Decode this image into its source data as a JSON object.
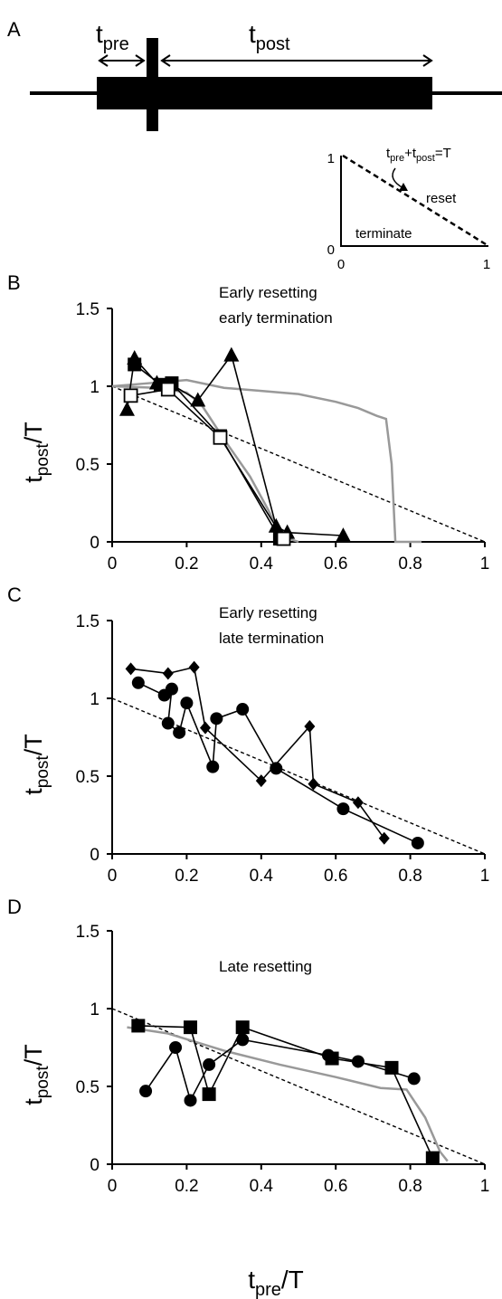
{
  "panels": {
    "A": {
      "letter": "A",
      "schematic": {
        "pre_label": "t",
        "pre_sub": "pre",
        "post_label": "t",
        "post_sub": "post"
      },
      "inset": {
        "equation": {
          "a": "t",
          "a_sub": "pre",
          "plus": "+t",
          "b_sub": "post",
          "rest": "=T"
        },
        "reset_label": "reset",
        "terminate_label": "terminate",
        "x_ticks": [
          "0",
          "1"
        ],
        "y_ticks": [
          "0",
          "1"
        ]
      }
    },
    "B": {
      "letter": "B",
      "annotation": [
        "Early resetting",
        "early termination"
      ],
      "ylabel": "t",
      "ylabel_sub": "post",
      "ylabel_tail": "/T"
    },
    "C": {
      "letter": "C",
      "annotation": [
        "Early resetting",
        "late termination"
      ],
      "ylabel": "t",
      "ylabel_sub": "post",
      "ylabel_tail": "/T"
    },
    "D": {
      "letter": "D",
      "annotation": [
        "Late resetting"
      ],
      "ylabel": "t",
      "ylabel_sub": "post",
      "ylabel_tail": "/T"
    }
  },
  "xlabel": {
    "main": "t",
    "sub": "pre",
    "tail": "/T"
  },
  "colors": {
    "black": "#000000",
    "gray": "#999999"
  },
  "chart_data": [
    {
      "type": "line",
      "panel": "B",
      "xlim": [
        0,
        1
      ],
      "ylim": [
        0,
        1.5
      ],
      "x_ticks": [
        "0",
        "0.2",
        "0.4",
        "0.6",
        "0.8",
        "1"
      ],
      "y_ticks": [
        "0",
        "0.5",
        "1",
        "1.5"
      ],
      "reference_line": {
        "x": [
          0,
          1
        ],
        "y": [
          1,
          0
        ],
        "style": "dashed"
      },
      "series": [
        {
          "marker": "triangle",
          "color": "#000000",
          "x": [
            0.04,
            0.06,
            0.12,
            0.16,
            0.23,
            0.32,
            0.44,
            0.47,
            0.62
          ],
          "y": [
            0.85,
            1.18,
            1.02,
            1.01,
            0.91,
            1.2,
            0.1,
            0.06,
            0.04
          ]
        },
        {
          "marker": "square",
          "color": "#000000",
          "x": [
            0.06,
            0.13,
            0.16,
            0.29,
            0.45
          ],
          "y": [
            1.14,
            1.01,
            1.02,
            0.68,
            0.02
          ]
        },
        {
          "marker": "open-square",
          "color": "#000000",
          "x": [
            0.05,
            0.15,
            0.29,
            0.46
          ],
          "y": [
            0.94,
            0.98,
            0.67,
            0.02
          ]
        },
        {
          "marker": "none",
          "color": "#999999",
          "x": [
            0.0,
            0.1,
            0.2,
            0.3,
            0.4,
            0.5,
            0.6,
            0.66,
            0.71,
            0.735,
            0.75,
            0.76,
            0.83
          ],
          "y": [
            1.0,
            1.02,
            1.04,
            0.99,
            0.97,
            0.95,
            0.9,
            0.86,
            0.81,
            0.79,
            0.5,
            0.0,
            0.0
          ]
        },
        {
          "marker": "none",
          "color": "#999999",
          "x": [
            0.0,
            0.12,
            0.2,
            0.24,
            0.3,
            0.37,
            0.42,
            0.45,
            0.5
          ],
          "y": [
            1.0,
            0.99,
            0.96,
            0.88,
            0.66,
            0.42,
            0.2,
            0.04,
            0.0
          ]
        }
      ]
    },
    {
      "type": "line",
      "panel": "C",
      "xlim": [
        0,
        1
      ],
      "ylim": [
        0,
        1.5
      ],
      "x_ticks": [
        "0",
        "0.2",
        "0.4",
        "0.6",
        "0.8",
        "1"
      ],
      "y_ticks": [
        "0",
        "0.5",
        "1",
        "1.5"
      ],
      "reference_line": {
        "x": [
          0,
          1
        ],
        "y": [
          1,
          0
        ],
        "style": "dashed"
      },
      "series": [
        {
          "marker": "diamond",
          "color": "#000000",
          "x": [
            0.05,
            0.15,
            0.22,
            0.25,
            0.4,
            0.53,
            0.54,
            0.66,
            0.73
          ],
          "y": [
            1.19,
            1.16,
            1.2,
            0.81,
            0.47,
            0.82,
            0.45,
            0.33,
            0.1
          ]
        },
        {
          "marker": "circle",
          "color": "#000000",
          "x": [
            0.07,
            0.14,
            0.16,
            0.15,
            0.18,
            0.2,
            0.27,
            0.28,
            0.35,
            0.44,
            0.62,
            0.82
          ],
          "y": [
            1.1,
            1.02,
            1.06,
            0.84,
            0.78,
            0.97,
            0.56,
            0.87,
            0.93,
            0.55,
            0.29,
            0.07
          ]
        }
      ]
    },
    {
      "type": "line",
      "panel": "D",
      "xlim": [
        0,
        1
      ],
      "ylim": [
        0,
        1.5
      ],
      "x_ticks": [
        "0",
        "0.2",
        "0.4",
        "0.6",
        "0.8",
        "1"
      ],
      "y_ticks": [
        "0",
        "0.5",
        "1",
        "1.5"
      ],
      "reference_line": {
        "x": [
          0,
          1
        ],
        "y": [
          1,
          0
        ],
        "style": "dashed"
      },
      "series": [
        {
          "marker": "square",
          "color": "#000000",
          "x": [
            0.07,
            0.21,
            0.26,
            0.35,
            0.59,
            0.75,
            0.86
          ],
          "y": [
            0.89,
            0.88,
            0.45,
            0.88,
            0.68,
            0.62,
            0.04
          ]
        },
        {
          "marker": "circle",
          "color": "#000000",
          "x": [
            0.09,
            0.17,
            0.21,
            0.26,
            0.35,
            0.58,
            0.66,
            0.81
          ],
          "y": [
            0.47,
            0.75,
            0.41,
            0.64,
            0.8,
            0.7,
            0.66,
            0.55
          ]
        },
        {
          "marker": "none",
          "color": "#999999",
          "x": [
            0.04,
            0.15,
            0.3,
            0.45,
            0.6,
            0.72,
            0.79,
            0.84,
            0.88,
            0.9
          ],
          "y": [
            0.88,
            0.84,
            0.73,
            0.64,
            0.56,
            0.49,
            0.48,
            0.3,
            0.08,
            0.02
          ]
        }
      ]
    }
  ]
}
